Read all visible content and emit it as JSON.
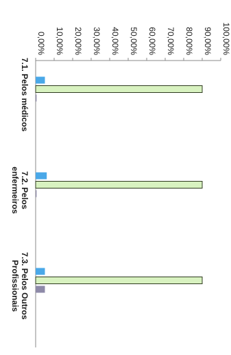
{
  "chart_data": {
    "type": "bar",
    "orientation": "rotated-90-clockwise",
    "categories": [
      "7.1. Pelos médicos",
      "7.2. Pelos enfermeiros",
      "7.3. Pelos Outros Profissionais"
    ],
    "series": [
      {
        "values": [
          0.5,
          0.5,
          5.0
        ],
        "color": "#8e8aa8"
      },
      {
        "values": [
          90.0,
          90.0,
          90.0
        ],
        "color": "#d8f2c0"
      },
      {
        "values": [
          5.0,
          6.0,
          5.0
        ],
        "color": "#4aa8e8"
      }
    ],
    "ylim": [
      0,
      100
    ],
    "yticks": [
      "0,00%",
      "10,00%",
      "20,00%",
      "30,00%",
      "40,00%",
      "50,00%",
      "60,00%",
      "70,00%",
      "80,00%",
      "90,00%",
      "100,00%"
    ],
    "grid": false
  }
}
